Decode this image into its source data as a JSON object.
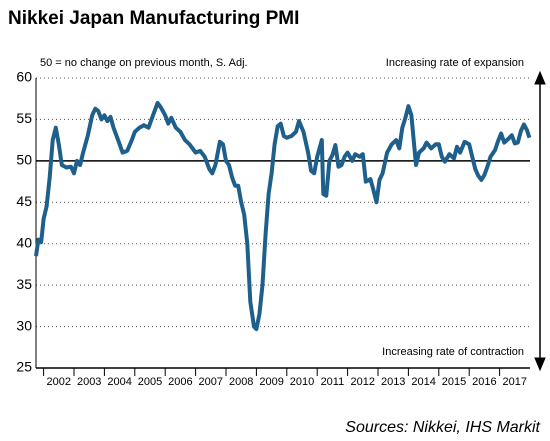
{
  "chart_data": {
    "type": "line",
    "title": "Nikkei Japan Manufacturing PMI",
    "subtitle": "50 = no change on previous month, S. Adj.",
    "annotations": [
      "Increasing rate of expansion",
      "Increasing rate of contraction"
    ],
    "source": "Sources: Nikkei, IHS Markit",
    "hline": 50,
    "grid": true,
    "xlim": [
      2001.75,
      2018.0
    ],
    "xticks": [
      2002,
      2003,
      2004,
      2005,
      2006,
      2007,
      2008,
      2009,
      2010,
      2011,
      2012,
      2013,
      2014,
      2015,
      2016,
      2017
    ],
    "ylim": [
      25,
      60
    ],
    "yticks": [
      25,
      30,
      35,
      40,
      45,
      50,
      55,
      60
    ],
    "x": [
      2001.75,
      2001.83,
      2001.92,
      2002.0,
      2002.1,
      2002.2,
      2002.3,
      2002.4,
      2002.5,
      2002.6,
      2002.75,
      2002.9,
      2003.0,
      2003.1,
      2003.2,
      2003.3,
      2003.45,
      2003.6,
      2003.7,
      2003.8,
      2003.9,
      2004.0,
      2004.1,
      2004.2,
      2004.3,
      2004.45,
      2004.6,
      2004.75,
      2004.9,
      2005.0,
      2005.15,
      2005.3,
      2005.45,
      2005.6,
      2005.75,
      2005.85,
      2006.0,
      2006.1,
      2006.2,
      2006.35,
      2006.5,
      2006.65,
      2006.8,
      2007.0,
      2007.15,
      2007.3,
      2007.45,
      2007.55,
      2007.65,
      2007.8,
      2007.9,
      2008.0,
      2008.1,
      2008.2,
      2008.3,
      2008.4,
      2008.5,
      2008.6,
      2008.7,
      2008.8,
      2008.92,
      2009.0,
      2009.1,
      2009.2,
      2009.3,
      2009.4,
      2009.5,
      2009.6,
      2009.7,
      2009.8,
      2009.9,
      2010.0,
      2010.15,
      2010.3,
      2010.4,
      2010.55,
      2010.7,
      2010.8,
      2010.9,
      2011.0,
      2011.15,
      2011.2,
      2011.3,
      2011.4,
      2011.5,
      2011.6,
      2011.7,
      2011.8,
      2011.9,
      2012.0,
      2012.15,
      2012.25,
      2012.4,
      2012.5,
      2012.6,
      2012.75,
      2012.85,
      2012.95,
      2013.05,
      2013.15,
      2013.3,
      2013.45,
      2013.6,
      2013.7,
      2013.8,
      2013.9,
      2014.0,
      2014.1,
      2014.25,
      2014.35,
      2014.5,
      2014.6,
      2014.75,
      2014.9,
      2015.0,
      2015.1,
      2015.2,
      2015.35,
      2015.5,
      2015.6,
      2015.7,
      2015.85,
      2016.0,
      2016.1,
      2016.2,
      2016.3,
      2016.4,
      2016.5,
      2016.6,
      2016.7,
      2016.85,
      2016.95,
      2017.05,
      2017.15,
      2017.3,
      2017.4,
      2017.5,
      2017.6,
      2017.7,
      2017.8,
      2017.9,
      2017.98
    ],
    "series": [
      {
        "color": "#1f5f8b",
        "values": [
          38.5,
          40.5,
          40.2,
          43,
          44.5,
          48,
          52.5,
          54,
          52,
          49.5,
          49.2,
          49.3,
          48.5,
          50,
          49.5,
          51,
          53,
          55.5,
          56.3,
          56,
          55,
          55.5,
          54.8,
          55.3,
          54,
          52.5,
          51,
          51.2,
          52.5,
          53.5,
          54,
          54.3,
          54,
          55.5,
          57,
          56.5,
          55.5,
          54.5,
          55.2,
          54,
          53.5,
          52.5,
          52,
          51,
          51.2,
          50.5,
          49,
          48.5,
          49.5,
          52.3,
          52,
          50,
          49.5,
          48,
          47,
          47,
          45,
          43.5,
          40,
          33,
          30,
          29.7,
          31.5,
          35,
          41,
          46,
          48.5,
          52,
          54.2,
          54.5,
          53,
          52.8,
          53,
          53.5,
          54.8,
          53.5,
          51,
          48.8,
          48.5,
          50.5,
          52.5,
          46,
          45.8,
          50,
          50.7,
          51.9,
          49.3,
          49.5,
          50.5,
          51,
          50,
          50.8,
          50.5,
          50.8,
          47.5,
          47.8,
          46.5,
          45,
          47.7,
          48.5,
          51,
          52,
          52.5,
          51.5,
          54,
          55.2,
          56.6,
          55.5,
          49.5,
          51,
          51.5,
          52.2,
          51.5,
          52,
          52,
          50.5,
          49.9,
          50.8,
          50.3,
          51.7,
          51,
          52.3,
          52,
          50.5,
          49,
          48.2,
          47.7,
          48.3,
          49.3,
          50.5,
          51.3,
          52.4,
          53.3,
          52.2,
          52.7,
          53.1,
          52.1,
          52.2,
          53.6,
          54.4,
          53.7,
          52.8
        ]
      }
    ]
  }
}
